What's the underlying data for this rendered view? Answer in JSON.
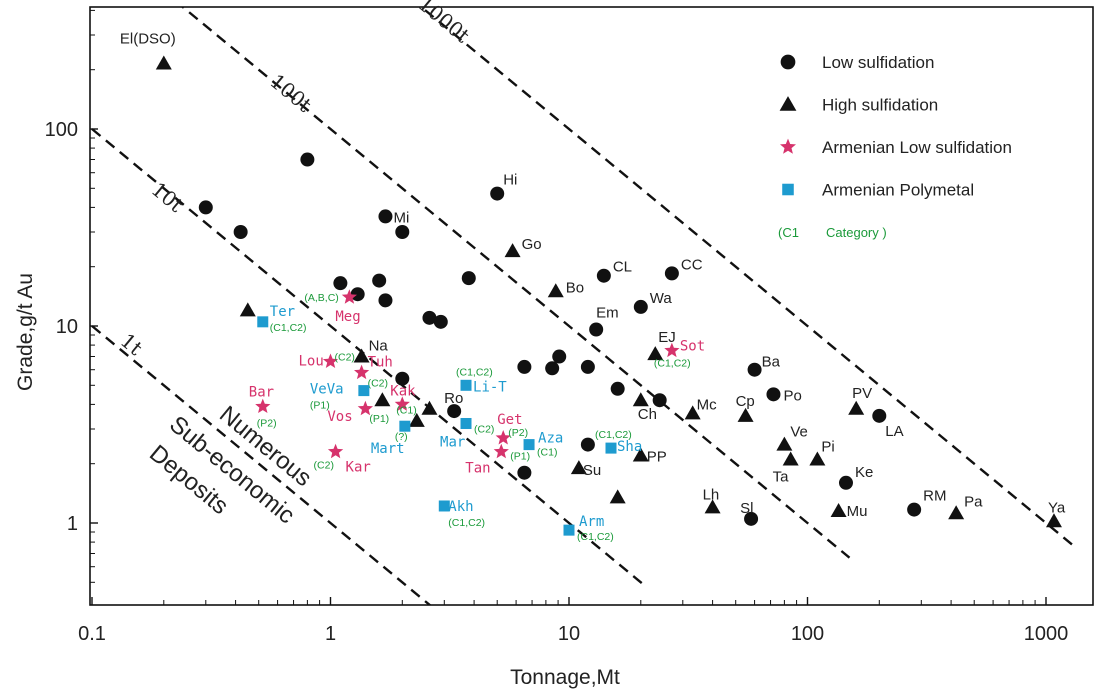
{
  "colors": {
    "black": "#111111",
    "armenian_low": "#d6336c",
    "armenian_poly": "#1e9bcf",
    "category": "#1b9a3a"
  },
  "chart_data": {
    "type": "scatter",
    "x_scale": "log",
    "y_scale": "log",
    "xlabel": "Tonnage,Mt",
    "ylabel": "Grade,g/t Au",
    "xlim": [
      0.1,
      1300
    ],
    "ylim": [
      0.43,
      480
    ],
    "x_ticks": [
      {
        "v": 0.1,
        "t": "0.1"
      },
      {
        "v": 1,
        "t": "1"
      },
      {
        "v": 10,
        "t": "10"
      },
      {
        "v": 100,
        "t": "100"
      },
      {
        "v": 1000,
        "t": "1000"
      }
    ],
    "y_ticks": [
      {
        "v": 1,
        "t": "1"
      },
      {
        "v": 10,
        "t": "10"
      },
      {
        "v": 100,
        "t": "100"
      }
    ],
    "grid": false,
    "legend_position": "top-right",
    "legend": [
      {
        "symbol": "circle",
        "color": "#111111",
        "label": "Low sulfidation"
      },
      {
        "symbol": "triangle",
        "color": "#111111",
        "label": "High  sulfidation"
      },
      {
        "symbol": "star",
        "color": "#d6336c",
        "label": "Armenian  Low sulfidation"
      },
      {
        "symbol": "square",
        "color": "#1e9bcf",
        "label": "Armenian  Polymetal"
      },
      {
        "symbol": "category",
        "color": "#1b9a3a",
        "open": "(C1",
        "label": "Category )"
      }
    ],
    "guides": [
      {
        "label": "1t",
        "k": 1
      },
      {
        "label": "10t",
        "k": 10
      },
      {
        "label": "100t",
        "k": 100
      },
      {
        "label": "1000t",
        "k": 1000
      }
    ],
    "annotations": [
      {
        "lines": [
          "Numerous",
          "Sub-economic",
          "Deposits"
        ]
      }
    ],
    "series": [
      {
        "name": "Low sulfidation",
        "marker": "circle",
        "points": [
          {
            "x": 0.3,
            "y": 40
          },
          {
            "x": 0.42,
            "y": 30
          },
          {
            "x": 0.8,
            "y": 70
          },
          {
            "x": 1.1,
            "y": 16.5
          },
          {
            "x": 1.3,
            "y": 14.5
          },
          {
            "x": 1.6,
            "y": 17
          },
          {
            "x": 1.7,
            "y": 13.5
          },
          {
            "x": 1.7,
            "y": 36,
            "label": "Mi"
          },
          {
            "x": 2.0,
            "y": 30
          },
          {
            "x": 2.6,
            "y": 11
          },
          {
            "x": 2.9,
            "y": 10.5
          },
          {
            "x": 2.0,
            "y": 5.4
          },
          {
            "x": 3.8,
            "y": 17.5
          },
          {
            "x": 3.3,
            "y": 3.7,
            "label": "Ro"
          },
          {
            "x": 5.0,
            "y": 47,
            "label": "Hi"
          },
          {
            "x": 6.5,
            "y": 6.2
          },
          {
            "x": 8.5,
            "y": 6.1
          },
          {
            "x": 9.1,
            "y": 7.0
          },
          {
            "x": 12,
            "y": 6.2
          },
          {
            "x": 12,
            "y": 2.5
          },
          {
            "x": 6.5,
            "y": 1.8
          },
          {
            "x": 13,
            "y": 9.6,
            "label": "Em"
          },
          {
            "x": 14,
            "y": 18,
            "label": "CL"
          },
          {
            "x": 16,
            "y": 4.8
          },
          {
            "x": 20,
            "y": 12.5,
            "label": "Wa"
          },
          {
            "x": 24,
            "y": 4.2
          },
          {
            "x": 27,
            "y": 18.5,
            "label": "CC"
          },
          {
            "x": 60,
            "y": 6.0,
            "label": "Ba"
          },
          {
            "x": 72,
            "y": 4.5,
            "label": "Po"
          },
          {
            "x": 145,
            "y": 1.6,
            "label": "Ke"
          },
          {
            "x": 200,
            "y": 3.5,
            "label": "LA"
          },
          {
            "x": 58,
            "y": 1.05,
            "label": "Sl"
          },
          {
            "x": 280,
            "y": 1.17,
            "label": "RM"
          }
        ]
      },
      {
        "name": "High  sulfidation",
        "marker": "triangle",
        "points": [
          {
            "x": 0.2,
            "y": 215,
            "label": "El(DSO)"
          },
          {
            "x": 0.45,
            "y": 12
          },
          {
            "x": 1.35,
            "y": 7.0,
            "label": "Na"
          },
          {
            "x": 1.65,
            "y": 4.2
          },
          {
            "x": 2.3,
            "y": 3.3
          },
          {
            "x": 2.6,
            "y": 3.8
          },
          {
            "x": 5.8,
            "y": 24,
            "label": "Go"
          },
          {
            "x": 8.8,
            "y": 15,
            "label": "Bo"
          },
          {
            "x": 11,
            "y": 1.9,
            "label": "Su"
          },
          {
            "x": 16,
            "y": 1.35
          },
          {
            "x": 20,
            "y": 4.2,
            "label": "Ch"
          },
          {
            "x": 20,
            "y": 2.2,
            "label": "PP"
          },
          {
            "x": 23,
            "y": 7.2,
            "label": "EJ"
          },
          {
            "x": 33,
            "y": 3.6,
            "label": "Mc"
          },
          {
            "x": 40,
            "y": 1.2,
            "label": "Lh"
          },
          {
            "x": 55,
            "y": 3.5,
            "label": "Cp"
          },
          {
            "x": 80,
            "y": 2.5,
            "label": "Ve"
          },
          {
            "x": 85,
            "y": 2.1,
            "label": "Ta"
          },
          {
            "x": 110,
            "y": 2.1,
            "label": "Pi"
          },
          {
            "x": 135,
            "y": 1.15,
            "label": "Mu"
          },
          {
            "x": 160,
            "y": 3.8,
            "label": "PV"
          },
          {
            "x": 420,
            "y": 1.12,
            "label": "Pa"
          },
          {
            "x": 1080,
            "y": 1.02,
            "label": "Ya"
          }
        ]
      },
      {
        "name": "Armenian  Low sulfidation",
        "marker": "star",
        "points": [
          {
            "x": 1.2,
            "y": 14,
            "label": "Meg",
            "cat": "(A,B,C)"
          },
          {
            "x": 1.0,
            "y": 6.6,
            "label": "Lou",
            "cat": "(C2)"
          },
          {
            "x": 1.35,
            "y": 5.8,
            "label": "Tuh",
            "cat": "(C2)"
          },
          {
            "x": 0.52,
            "y": 3.9,
            "label": "Bar",
            "cat": "(P2)"
          },
          {
            "x": 1.4,
            "y": 3.8,
            "label": "Vos",
            "cat": "(P1)"
          },
          {
            "x": 2.0,
            "y": 4.0,
            "label": "Kak",
            "cat": "(C1)"
          },
          {
            "x": 1.05,
            "y": 2.3,
            "label": "Kar",
            "cat": "(C2)"
          },
          {
            "x": 5.3,
            "y": 2.7,
            "label": "Get",
            "cat": "(P2)"
          },
          {
            "x": 5.2,
            "y": 2.3,
            "label": "Tan",
            "cat": "(P1)"
          },
          {
            "x": 27,
            "y": 7.5,
            "label": "Sot",
            "cat": "(C1,C2)"
          }
        ]
      },
      {
        "name": "Armenian  Polymetal",
        "marker": "square",
        "points": [
          {
            "x": 0.52,
            "y": 10.5,
            "label": "Ter",
            "cat": "(C1,C2)"
          },
          {
            "x": 1.38,
            "y": 4.7,
            "label": "VeVa",
            "cat": "(P1)"
          },
          {
            "x": 3.7,
            "y": 5.0,
            "label": "Li-T",
            "cat": "(C1,C2)"
          },
          {
            "x": 2.05,
            "y": 3.1,
            "label": "Mart",
            "cat": "(?)"
          },
          {
            "x": 3.7,
            "y": 3.2,
            "label": "Mar",
            "cat": "(C2)"
          },
          {
            "x": 6.8,
            "y": 2.5,
            "label": "Aza",
            "cat": "(C1)"
          },
          {
            "x": 15,
            "y": 2.4,
            "label": "Sha",
            "cat": "(C1,C2)"
          },
          {
            "x": 3.0,
            "y": 1.22,
            "label": "Akh",
            "cat": "(C1,C2)"
          },
          {
            "x": 10,
            "y": 0.92,
            "label": "Arm",
            "cat": "(C1,C2)"
          }
        ]
      }
    ]
  }
}
